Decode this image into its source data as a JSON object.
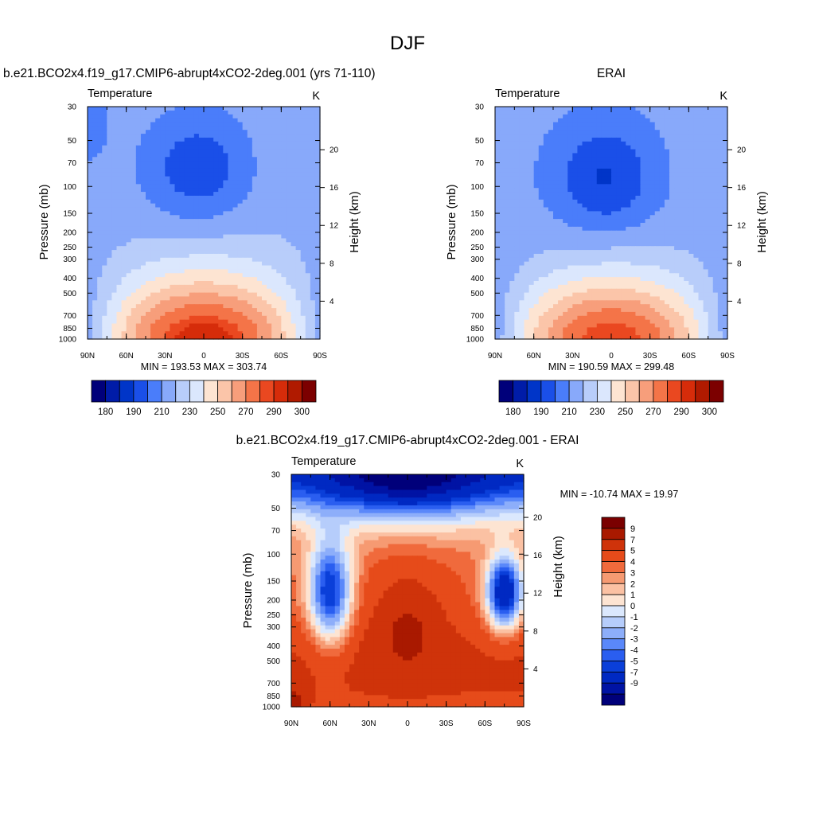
{
  "page": {
    "title": "DJF"
  },
  "colors": {
    "abs_palette": [
      "#00007a",
      "#001ca8",
      "#0035c8",
      "#1a4fe8",
      "#4a7dfa",
      "#88a9fa",
      "#b8cdfa",
      "#dbe7fd",
      "#fde4d2",
      "#fbc5a9",
      "#f79e7b",
      "#f47448",
      "#ea4820",
      "#d62c0a",
      "#b01a00",
      "#7c0000"
    ],
    "diff_palette": [
      "#00007a",
      "#0013a4",
      "#0029c2",
      "#0a3fd9",
      "#2a5ef0",
      "#5a88fa",
      "#8daefa",
      "#b6cdfb",
      "#dbe8fd",
      "#fde4d2",
      "#fbc1a3",
      "#f69a72",
      "#f06a3c",
      "#e64b1a",
      "#cf330a",
      "#a91900",
      "#7a0000"
    ]
  },
  "chart_data": [
    {
      "type": "heatmap",
      "panel_title": "b.e21.BCO2x4.f19_g17.CMIP6-abrupt4xCO2-2deg.001 (yrs 71-110)",
      "variable_label": "Temperature",
      "units_label": "K",
      "xlabel": "",
      "ylabel": "Pressure (mb)",
      "y2label": "Height (km)",
      "x_tick_labels": [
        "90N",
        "60N",
        "30N",
        "0",
        "30S",
        "60S",
        "90S"
      ],
      "y_tick_labels": [
        "30",
        "50",
        "70",
        "100",
        "150",
        "200",
        "250",
        "300",
        "400",
        "500",
        "700",
        "850",
        "1000"
      ],
      "y_tick_values": [
        30,
        50,
        70,
        100,
        150,
        200,
        250,
        300,
        400,
        500,
        700,
        850,
        1000
      ],
      "y2_tick_labels": [
        "4",
        "8",
        "12",
        "16",
        "20"
      ],
      "y2_tick_values": [
        4,
        8,
        12,
        16,
        20
      ],
      "xlim": [
        90,
        -90
      ],
      "ylim": [
        1000,
        30
      ],
      "y_scale": "log",
      "stats_text": "MIN = 193.53  MAX = 303.74",
      "min": 193.53,
      "max": 303.74,
      "colorbar_labels": [
        "180",
        "190",
        "210",
        "230",
        "250",
        "270",
        "290",
        "300"
      ],
      "legend_position": "bottom"
    },
    {
      "type": "heatmap",
      "panel_title": "ERAI",
      "variable_label": "Temperature",
      "units_label": "K",
      "xlabel": "",
      "ylabel": "Pressure (mb)",
      "y2label": "Height (km)",
      "x_tick_labels": [
        "90N",
        "60N",
        "30N",
        "0",
        "30S",
        "60S",
        "90S"
      ],
      "y_tick_labels": [
        "30",
        "50",
        "70",
        "100",
        "150",
        "200",
        "250",
        "300",
        "400",
        "500",
        "700",
        "850",
        "1000"
      ],
      "y_tick_values": [
        30,
        50,
        70,
        100,
        150,
        200,
        250,
        300,
        400,
        500,
        700,
        850,
        1000
      ],
      "y2_tick_labels": [
        "4",
        "8",
        "12",
        "16",
        "20"
      ],
      "y2_tick_values": [
        4,
        8,
        12,
        16,
        20
      ],
      "xlim": [
        90,
        -90
      ],
      "ylim": [
        1000,
        30
      ],
      "y_scale": "log",
      "stats_text": "MIN = 190.59  MAX = 299.48",
      "min": 190.59,
      "max": 299.48,
      "colorbar_labels": [
        "180",
        "190",
        "210",
        "230",
        "250",
        "270",
        "290",
        "300"
      ],
      "legend_position": "bottom"
    },
    {
      "type": "heatmap",
      "panel_title": "b.e21.BCO2x4.f19_g17.CMIP6-abrupt4xCO2-2deg.001 - ERAI",
      "variable_label": "Temperature",
      "units_label": "K",
      "xlabel": "",
      "ylabel": "Pressure (mb)",
      "y2label": "Height (km)",
      "x_tick_labels": [
        "90N",
        "60N",
        "30N",
        "0",
        "30S",
        "60S",
        "90S"
      ],
      "y_tick_labels": [
        "30",
        "50",
        "70",
        "100",
        "150",
        "200",
        "250",
        "300",
        "400",
        "500",
        "700",
        "850",
        "1000"
      ],
      "y_tick_values": [
        30,
        50,
        70,
        100,
        150,
        200,
        250,
        300,
        400,
        500,
        700,
        850,
        1000
      ],
      "y2_tick_labels": [
        "4",
        "8",
        "12",
        "16",
        "20"
      ],
      "y2_tick_values": [
        4,
        8,
        12,
        16,
        20
      ],
      "xlim": [
        90,
        -90
      ],
      "ylim": [
        1000,
        30
      ],
      "y_scale": "log",
      "stats_text": "MIN = -10.74  MAX =  19.97",
      "min": -10.74,
      "max": 19.97,
      "colorbar_labels": [
        "9",
        "7",
        "5",
        "4",
        "3",
        "2",
        "1",
        "0",
        "-1",
        "-2",
        "-3",
        "-4",
        "-5",
        "-7",
        "-9"
      ],
      "legend_position": "right"
    }
  ]
}
